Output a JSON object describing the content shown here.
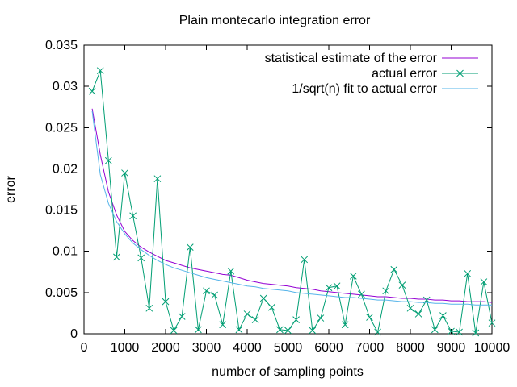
{
  "colors": {
    "background": "#ffffff",
    "axis": "#000000",
    "text": "#000000",
    "series_statistical": "#9400d3",
    "series_actual": "#009e73",
    "series_fit": "#56b4e9"
  },
  "chart_data": {
    "type": "line",
    "title": "Plain montecarlo integration error",
    "xlabel": "number of sampling points",
    "ylabel": "error",
    "xlim": [
      0,
      10000
    ],
    "ylim": [
      0,
      0.035
    ],
    "grid": false,
    "legend_position": "top-right-inside",
    "x_ticks": [
      0,
      1000,
      2000,
      3000,
      4000,
      5000,
      6000,
      7000,
      8000,
      9000,
      10000
    ],
    "x_tick_labels": [
      "0",
      "1000",
      "2000",
      "3000",
      "4000",
      "5000",
      "6000",
      "7000",
      "8000",
      "9000",
      "10000"
    ],
    "y_ticks": [
      0,
      0.005,
      0.01,
      0.015,
      0.02,
      0.025,
      0.03,
      0.035
    ],
    "y_tick_labels": [
      "0",
      "0.005",
      "0.01",
      "0.015",
      "0.02",
      "0.025",
      "0.03",
      "0.035"
    ],
    "x": [
      200,
      400,
      600,
      800,
      1000,
      1200,
      1400,
      1600,
      1800,
      2000,
      2200,
      2400,
      2600,
      2800,
      3000,
      3200,
      3400,
      3600,
      3800,
      4000,
      4200,
      4400,
      4600,
      4800,
      5000,
      5200,
      5400,
      5600,
      5800,
      6000,
      6200,
      6400,
      6600,
      6800,
      7000,
      7200,
      7400,
      7600,
      7800,
      8000,
      8200,
      8400,
      8600,
      8800,
      9000,
      9200,
      9400,
      9600,
      9800,
      10000
    ],
    "series": [
      {
        "name": "statistical estimate of the error",
        "color": "#9400d3",
        "marker": "none",
        "values": [
          0.0273,
          0.0217,
          0.0172,
          0.0144,
          0.0124,
          0.0113,
          0.0105,
          0.0099,
          0.0094,
          0.0089,
          0.0086,
          0.0083,
          0.008,
          0.0078,
          0.0076,
          0.0074,
          0.0072,
          0.0071,
          0.0068,
          0.0065,
          0.0063,
          0.0061,
          0.006,
          0.0059,
          0.0058,
          0.0056,
          0.0055,
          0.0054,
          0.0052,
          0.0051,
          0.005,
          0.0049,
          0.0048,
          0.0047,
          0.0046,
          0.0045,
          0.0045,
          0.0044,
          0.0043,
          0.0043,
          0.0042,
          0.0042,
          0.0041,
          0.0041,
          0.004,
          0.004,
          0.0039,
          0.0039,
          0.0039,
          0.0038
        ]
      },
      {
        "name": "actual error",
        "color": "#009e73",
        "marker": "x",
        "values": [
          0.0294,
          0.0319,
          0.021,
          0.0093,
          0.0195,
          0.0143,
          0.0092,
          0.0031,
          0.0188,
          0.0039,
          0.0004,
          0.0021,
          0.0105,
          0.0005,
          0.0052,
          0.0047,
          0.0011,
          0.0076,
          0.0005,
          0.0024,
          0.0017,
          0.0043,
          0.0032,
          0.0005,
          0.0004,
          0.0017,
          0.009,
          0.0004,
          0.0019,
          0.0056,
          0.0058,
          0.0011,
          0.007,
          0.0048,
          0.002,
          0.0002,
          0.0052,
          0.0078,
          0.0059,
          0.0031,
          0.0024,
          0.0041,
          0.0005,
          0.0022,
          0.0003,
          0.0002,
          0.0073,
          0.0001,
          0.0063,
          0.0013
        ]
      },
      {
        "name": "1/sqrt(n) fit to actual error",
        "color": "#56b4e9",
        "marker": "none",
        "values": [
          0.027,
          0.0193,
          0.0158,
          0.0136,
          0.0121,
          0.011,
          0.0102,
          0.0095,
          0.0089,
          0.0084,
          0.008,
          0.0077,
          0.0074,
          0.0071,
          0.0068,
          0.0066,
          0.0064,
          0.0062,
          0.006,
          0.0058,
          0.0057,
          0.0055,
          0.0054,
          0.0053,
          0.0052,
          0.005,
          0.0049,
          0.0048,
          0.0047,
          0.0046,
          0.0045,
          0.0044,
          0.0044,
          0.0043,
          0.0042,
          0.0041,
          0.0041,
          0.004,
          0.0039,
          0.0039,
          0.0038,
          0.0038,
          0.0037,
          0.0037,
          0.0036,
          0.0036,
          0.0036,
          0.0035,
          0.0035,
          0.0035
        ]
      }
    ]
  }
}
